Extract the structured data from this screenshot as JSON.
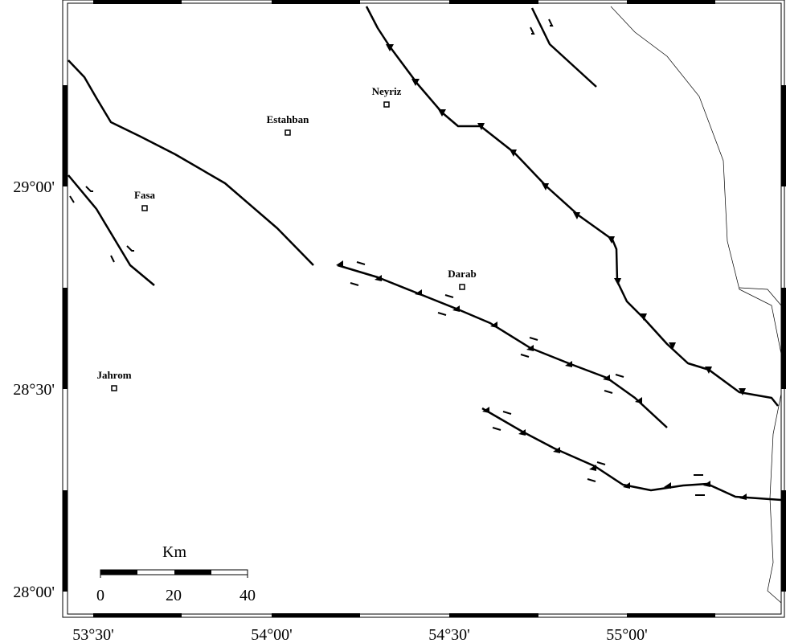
{
  "map": {
    "x_axis_labels": [
      "53°30'",
      "54°00'",
      "54°30'",
      "55°00'"
    ],
    "y_axis_labels": [
      "29°00'",
      "28°30'",
      "28°00'"
    ],
    "cities": [
      "Neyriz",
      "Estahban",
      "Fasa",
      "Darab",
      "Jahrom"
    ],
    "scale_bar": {
      "unit": "Km",
      "labels": [
        0,
        20,
        40
      ]
    }
  }
}
